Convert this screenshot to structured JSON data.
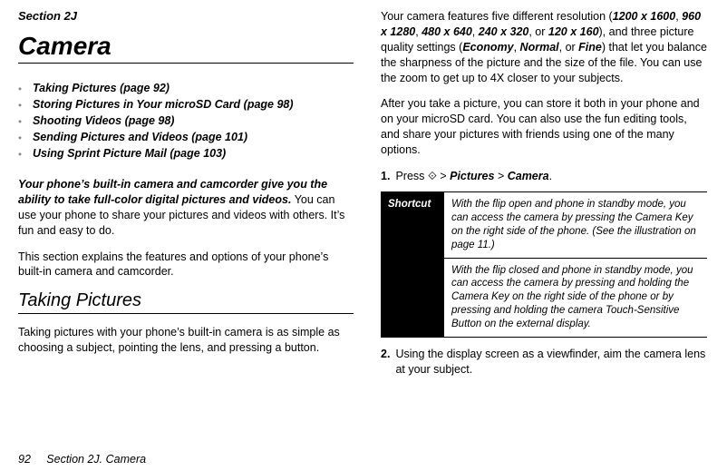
{
  "left": {
    "sectionLabel": "Section 2J",
    "heading": "Camera",
    "toc": [
      "Taking Pictures (page 92)",
      "Storing Pictures in Your microSD Card (page 98)",
      "Shooting Videos (page 98)",
      "Sending Pictures and Videos (page 101)",
      "Using Sprint Picture Mail (page 103)"
    ],
    "para1_lead": "Your phone’s built-in camera and camcorder give you the ability to take full-color digital pictures and videos.",
    "para1_tail": " You can use your phone to share your pictures and videos with others. It’s fun and easy to do.",
    "para2": "This section explains the features and options of your phone’s built-in camera and camcorder.",
    "subHeading": "Taking Pictures",
    "para3": "Taking pictures with your phone’s built-in camera is as simple as choosing a subject, pointing the lens, and pressing a button."
  },
  "right": {
    "intro_a": "Your camera features five different resolution (",
    "r1": "1200 x 1600",
    "c1": ", ",
    "r2": "960 x 1280",
    "c2": ", ",
    "r3": "480 x 640",
    "c3": ", ",
    "r4": "240 x 320",
    "c4": ", or ",
    "r5": "120 x 160",
    "intro_b": "), and three picture quality settings (",
    "q1": "Economy",
    "cc1": ", ",
    "q2": "Normal",
    "cc2": ", or ",
    "q3": "Fine",
    "intro_c": ") that let you balance the sharpness of the picture and the size of the file. You can use the zoom to get up to 4X closer to your subjects.",
    "para2": "After you take a picture, you can store it both in your phone and on your microSD card. You can also use the fun editing tools, and share your pictures with friends using one of the many options.",
    "step1_a": "Press ",
    "step1_key": "⟐",
    "step1_b": " > ",
    "step1_c": "Pictures",
    "step1_d": " > ",
    "step1_e": "Camera",
    "step1_f": ".",
    "shortcutHead": "Shortcut",
    "shortcutRow1": "With the flip open and phone in standby mode, you can access the camera by pressing the Camera Key on the right side of the phone. (See the illustration on page 11.)",
    "shortcutRow2": "With the flip closed and phone in standby mode, you can access the camera by pressing and holding the Camera Key on the right side of the phone or by pressing and holding the camera Touch-Sensitive Button on the external display.",
    "step2": "Using the display screen as a viewfinder, aim the camera lens at your subject."
  },
  "footer": {
    "pageNum": "92",
    "sectionLabel": "Section 2J. Camera"
  },
  "style": {
    "bullet": "⬩"
  }
}
